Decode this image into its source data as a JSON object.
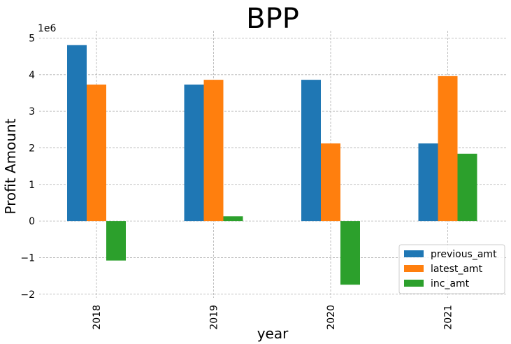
{
  "chart_data": {
    "type": "bar",
    "title": "BPP",
    "xlabel": "year",
    "ylabel": "Profit Amount",
    "y_offset_label": "1e6",
    "y_scale": 1000000,
    "ylim": [
      -2.1,
      5.2
    ],
    "yticks": [
      -2,
      -1,
      0,
      1,
      2,
      3,
      4,
      5
    ],
    "ytick_labels": [
      "−2",
      "−1",
      "0",
      "1",
      "2",
      "3",
      "4",
      "5"
    ],
    "categories": [
      "2018",
      "2019",
      "2020",
      "2021"
    ],
    "series": [
      {
        "name": "previous_amt",
        "color": "#1f77b4",
        "values": [
          4810000,
          3730000,
          3860000,
          2120000
        ]
      },
      {
        "name": "latest_amt",
        "color": "#ff7f0e",
        "values": [
          3730000,
          3860000,
          2120000,
          3960000
        ]
      },
      {
        "name": "inc_amt",
        "color": "#2ca02c",
        "values": [
          -1080000,
          130000,
          -1740000,
          1840000
        ]
      }
    ],
    "grid": true,
    "legend_position": "lower-right"
  }
}
